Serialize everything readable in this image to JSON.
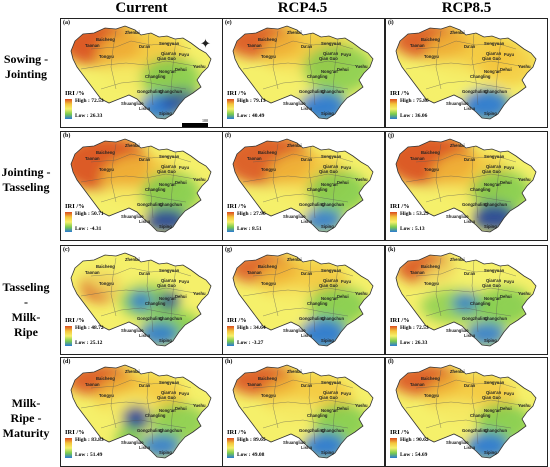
{
  "columns": [
    "Current",
    "RCP4.5",
    "RCP8.5"
  ],
  "rows": [
    "Sowing -\nJointing",
    "Jointing -\nTasseling",
    "Tasseling -\nMilk-Ripe",
    "Milk-Ripe -\nMaturity"
  ],
  "legend_title": "IRI /%",
  "counties": [
    {
      "name": "Zhenlai"
    },
    {
      "name": "Baicheng"
    },
    {
      "name": "Taonan"
    },
    {
      "name": "Da'an"
    },
    {
      "name": "Songyuan"
    },
    {
      "name": "Qian'an"
    },
    {
      "name": "Qian Guo"
    },
    {
      "name": "Fuyu"
    },
    {
      "name": "Tongyu"
    },
    {
      "name": "Changling"
    },
    {
      "name": "Nong'an"
    },
    {
      "name": "Dehui"
    },
    {
      "name": "Yushu"
    },
    {
      "name": "Gongzhuling"
    },
    {
      "name": "Changchun"
    },
    {
      "name": "Shuangliao"
    },
    {
      "name": "Lishu"
    },
    {
      "name": "Siping"
    }
  ],
  "panels": [
    {
      "label": "(a)",
      "high": "High : 72.53",
      "low": "Low : 26.33",
      "scale_text": "100"
    },
    {
      "label": "(e)",
      "high": "High : 79.13",
      "low": "Low : 40.49"
    },
    {
      "label": "(i)",
      "high": "High : 75.86",
      "low": "Low : 36.06"
    },
    {
      "label": "(b)",
      "high": "High : 50.71",
      "low": "Low : -4.31"
    },
    {
      "label": "(f)",
      "high": "High : 27.96",
      "low": "Low : 8.51"
    },
    {
      "label": "(j)",
      "high": "High : 53.29",
      "low": "Low : 5.13"
    },
    {
      "label": "(c)",
      "high": "High : 48.72",
      "low": "Low : 25.12"
    },
    {
      "label": "(g)",
      "high": "High : 34.64",
      "low": "Low : -3.27"
    },
    {
      "label": "(k)",
      "high": "High : 72.53",
      "low": "Low : 26.33"
    },
    {
      "label": "(d)",
      "high": "High : 83.83",
      "low": "Low : 51.49"
    },
    {
      "label": "(h)",
      "high": "High : 89.65",
      "low": "Low : 49.08"
    },
    {
      "label": "(l)",
      "high": "High : 90.62",
      "low": "Low : 54.69"
    }
  ],
  "colors": {
    "high": "#d94b1f",
    "mid_high": "#f4c33b",
    "mid": "#f5f06a",
    "mid_low": "#7ccb4f",
    "low": "#2b7ad3",
    "very_low": "#1f3f9a"
  }
}
